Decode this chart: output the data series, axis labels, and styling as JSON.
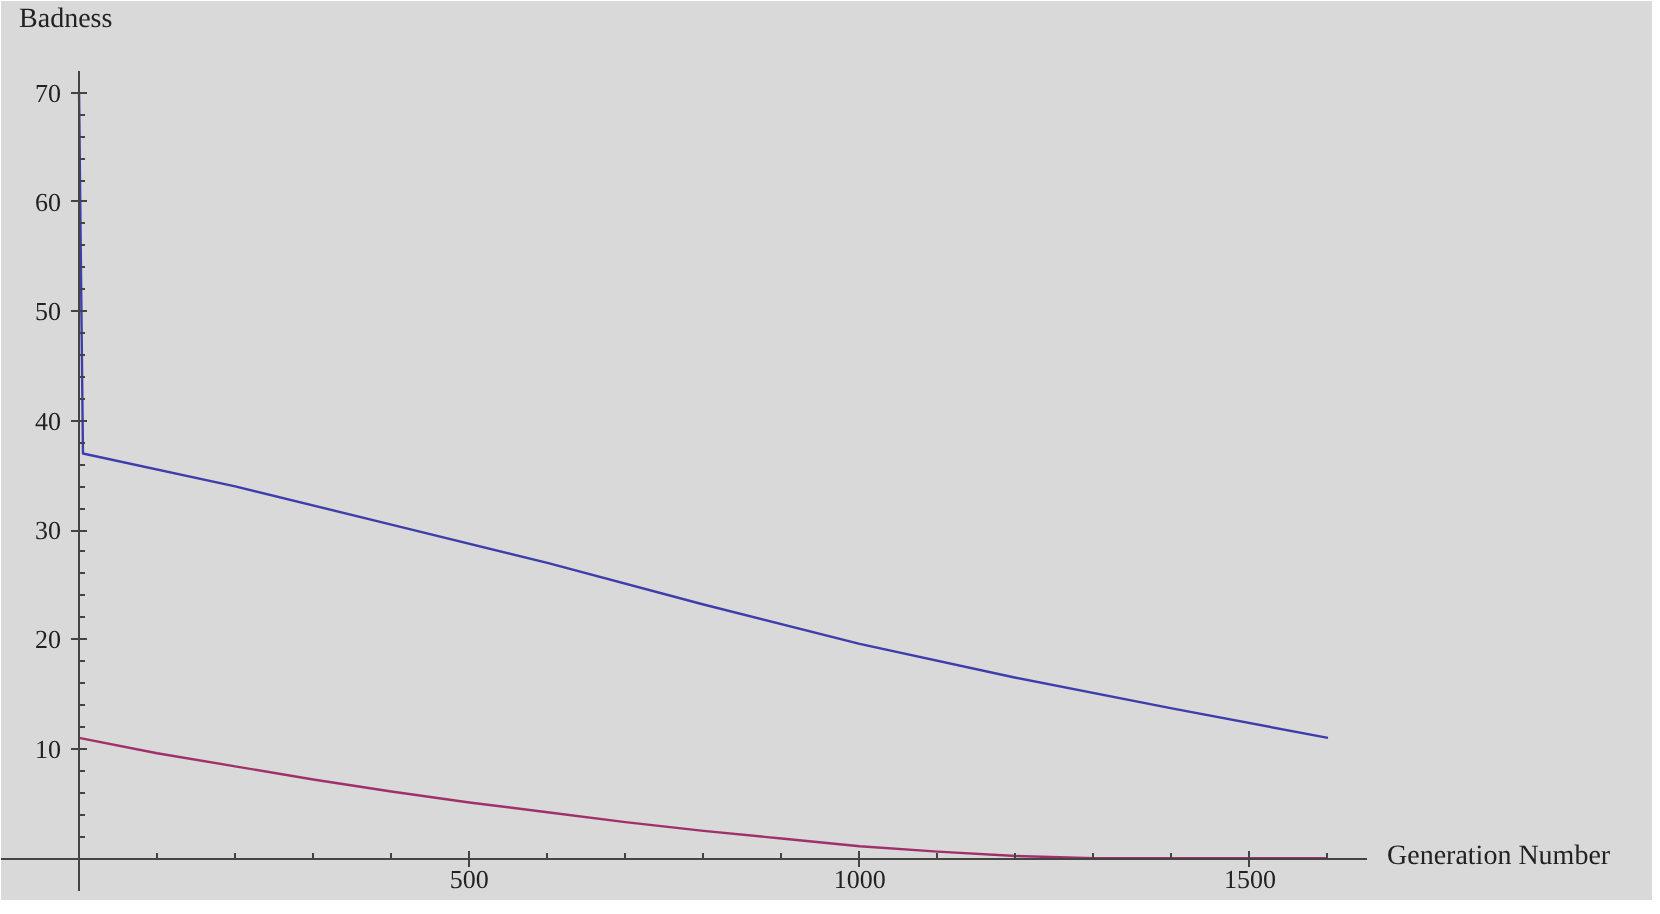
{
  "chart_data": {
    "type": "line",
    "xlabel": "Generation Number",
    "ylabel": "Badness",
    "xlim": [
      -100,
      1650
    ],
    "ylim": [
      -3,
      72
    ],
    "xticks": [
      {
        "value": 100,
        "label": null
      },
      {
        "value": 200,
        "label": null
      },
      {
        "value": 300,
        "label": null
      },
      {
        "value": 400,
        "label": null
      },
      500,
      {
        "value": 600,
        "label": null
      },
      {
        "value": 700,
        "label": null
      },
      {
        "value": 800,
        "label": null
      },
      {
        "value": 900,
        "label": null
      },
      1000,
      {
        "value": 1100,
        "label": null
      },
      {
        "value": 1200,
        "label": null
      },
      {
        "value": 1300,
        "label": null
      },
      {
        "value": 1400,
        "label": null
      },
      1500,
      {
        "value": 1600,
        "label": null
      }
    ],
    "yticks": [
      {
        "value": 2,
        "label": null
      },
      {
        "value": 4,
        "label": null
      },
      {
        "value": 6,
        "label": null
      },
      {
        "value": 8,
        "label": null
      },
      10,
      {
        "value": 12,
        "label": null
      },
      {
        "value": 14,
        "label": null
      },
      {
        "value": 16,
        "label": null
      },
      {
        "value": 18,
        "label": null
      },
      20,
      {
        "value": 22,
        "label": null
      },
      {
        "value": 24,
        "label": null
      },
      {
        "value": 26,
        "label": null
      },
      {
        "value": 28,
        "label": null
      },
      30,
      {
        "value": 32,
        "label": null
      },
      {
        "value": 34,
        "label": null
      },
      {
        "value": 36,
        "label": null
      },
      {
        "value": 38,
        "label": null
      },
      40,
      {
        "value": 42,
        "label": null
      },
      {
        "value": 44,
        "label": null
      },
      {
        "value": 46,
        "label": null
      },
      {
        "value": 48,
        "label": null
      },
      50,
      {
        "value": 52,
        "label": null
      },
      {
        "value": 54,
        "label": null
      },
      {
        "value": 56,
        "label": null
      },
      {
        "value": 58,
        "label": null
      },
      60,
      {
        "value": 62,
        "label": null
      },
      {
        "value": 64,
        "label": null
      },
      {
        "value": 66,
        "label": null
      },
      {
        "value": 68,
        "label": null
      },
      70
    ],
    "grid": false,
    "series": [
      {
        "color": "#3d3dab",
        "x": [
          0,
          5,
          200,
          400,
          600,
          800,
          1000,
          1200,
          1400,
          1600
        ],
        "values": [
          70,
          37,
          34,
          30.5,
          27,
          23.2,
          19.6,
          16.5,
          13.7,
          11
        ]
      },
      {
        "color": "#a0306b",
        "x": [
          0,
          100,
          200,
          300,
          400,
          500,
          600,
          700,
          800,
          900,
          1000,
          1100,
          1200,
          1300,
          1400,
          1500,
          1600
        ],
        "values": [
          11,
          9.6,
          8.4,
          7.2,
          6.1,
          5.1,
          4.2,
          3.3,
          2.5,
          1.8,
          1.1,
          0.6,
          0.2,
          0,
          0,
          0,
          0
        ]
      }
    ]
  }
}
